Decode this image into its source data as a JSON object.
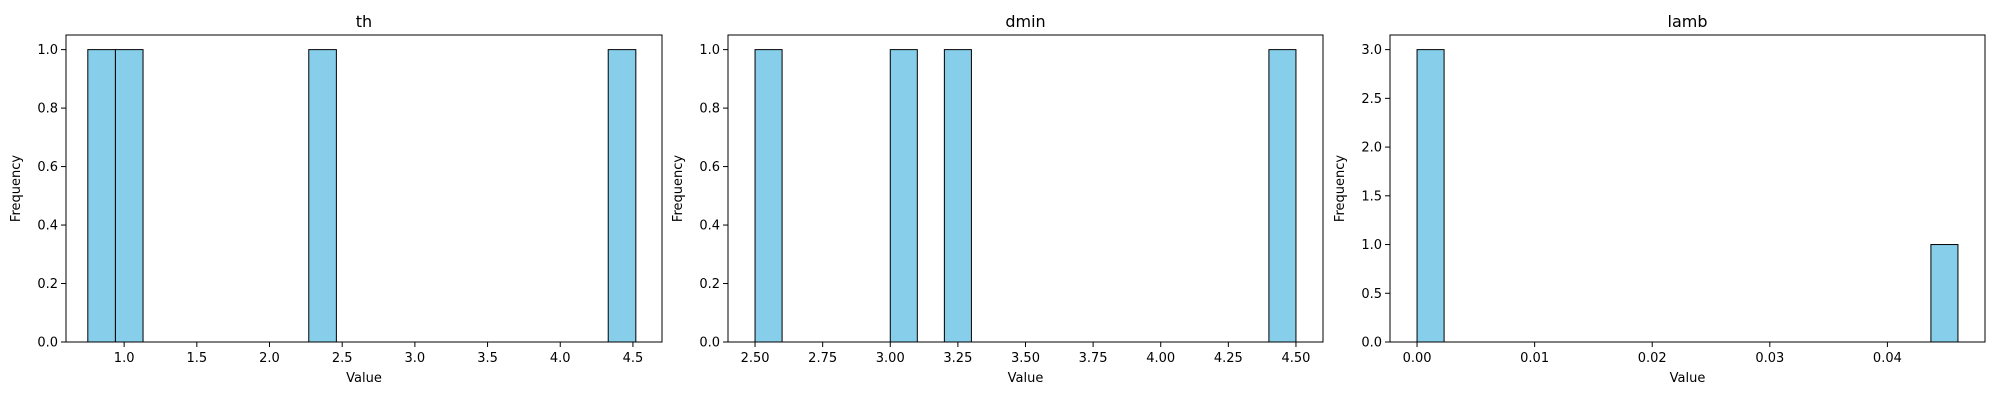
{
  "colors": {
    "bar_fill": "#87CEEB",
    "bar_edge": "#000000"
  },
  "chart_data": [
    {
      "type": "bar",
      "title": "th",
      "xlabel": "Value",
      "ylabel": "Frequency",
      "xlim": [
        0.6,
        4.7
      ],
      "ylim": [
        0,
        1.05
      ],
      "xticks": [
        1.0,
        1.5,
        2.0,
        2.5,
        3.0,
        3.5,
        4.0,
        4.5
      ],
      "xtick_labels": [
        "1.0",
        "1.5",
        "2.0",
        "2.5",
        "3.0",
        "3.5",
        "4.0",
        "4.5"
      ],
      "yticks": [
        0.0,
        0.2,
        0.4,
        0.6,
        0.8,
        1.0
      ],
      "ytick_labels": [
        "0.0",
        "0.2",
        "0.4",
        "0.6",
        "0.8",
        "1.0"
      ],
      "bins": [
        {
          "x0": 0.75,
          "x1": 0.94,
          "count": 1
        },
        {
          "x0": 0.94,
          "x1": 1.13,
          "count": 1
        },
        {
          "x0": 2.27,
          "x1": 2.46,
          "count": 1
        },
        {
          "x0": 4.33,
          "x1": 4.52,
          "count": 1
        }
      ]
    },
    {
      "type": "bar",
      "title": "dmin",
      "xlabel": "Value",
      "ylabel": "Frequency",
      "xlim": [
        2.4,
        4.6
      ],
      "ylim": [
        0,
        1.05
      ],
      "xticks": [
        2.5,
        2.75,
        3.0,
        3.25,
        3.5,
        3.75,
        4.0,
        4.25,
        4.5
      ],
      "xtick_labels": [
        "2.50",
        "2.75",
        "3.00",
        "3.25",
        "3.50",
        "3.75",
        "4.00",
        "4.25",
        "4.50"
      ],
      "yticks": [
        0.0,
        0.2,
        0.4,
        0.6,
        0.8,
        1.0
      ],
      "ytick_labels": [
        "0.0",
        "0.2",
        "0.4",
        "0.6",
        "0.8",
        "1.0"
      ],
      "bins": [
        {
          "x0": 2.5,
          "x1": 2.6,
          "count": 1
        },
        {
          "x0": 3.0,
          "x1": 3.1,
          "count": 1
        },
        {
          "x0": 3.2,
          "x1": 3.3,
          "count": 1
        },
        {
          "x0": 4.4,
          "x1": 4.5,
          "count": 1
        }
      ]
    },
    {
      "type": "bar",
      "title": "lamb",
      "xlabel": "Value",
      "ylabel": "Frequency",
      "xlim": [
        -0.0023,
        0.0483
      ],
      "ylim": [
        0,
        3.15
      ],
      "xticks": [
        0.0,
        0.01,
        0.02,
        0.03,
        0.04
      ],
      "xtick_labels": [
        "0.00",
        "0.01",
        "0.02",
        "0.03",
        "0.04"
      ],
      "yticks": [
        0.0,
        0.5,
        1.0,
        1.5,
        2.0,
        2.5,
        3.0
      ],
      "ytick_labels": [
        "0.0",
        "0.5",
        "1.0",
        "1.5",
        "2.0",
        "2.5",
        "3.0"
      ],
      "bins": [
        {
          "x0": 0.0,
          "x1": 0.0023,
          "count": 3
        },
        {
          "x0": 0.0437,
          "x1": 0.046,
          "count": 1
        }
      ]
    }
  ]
}
